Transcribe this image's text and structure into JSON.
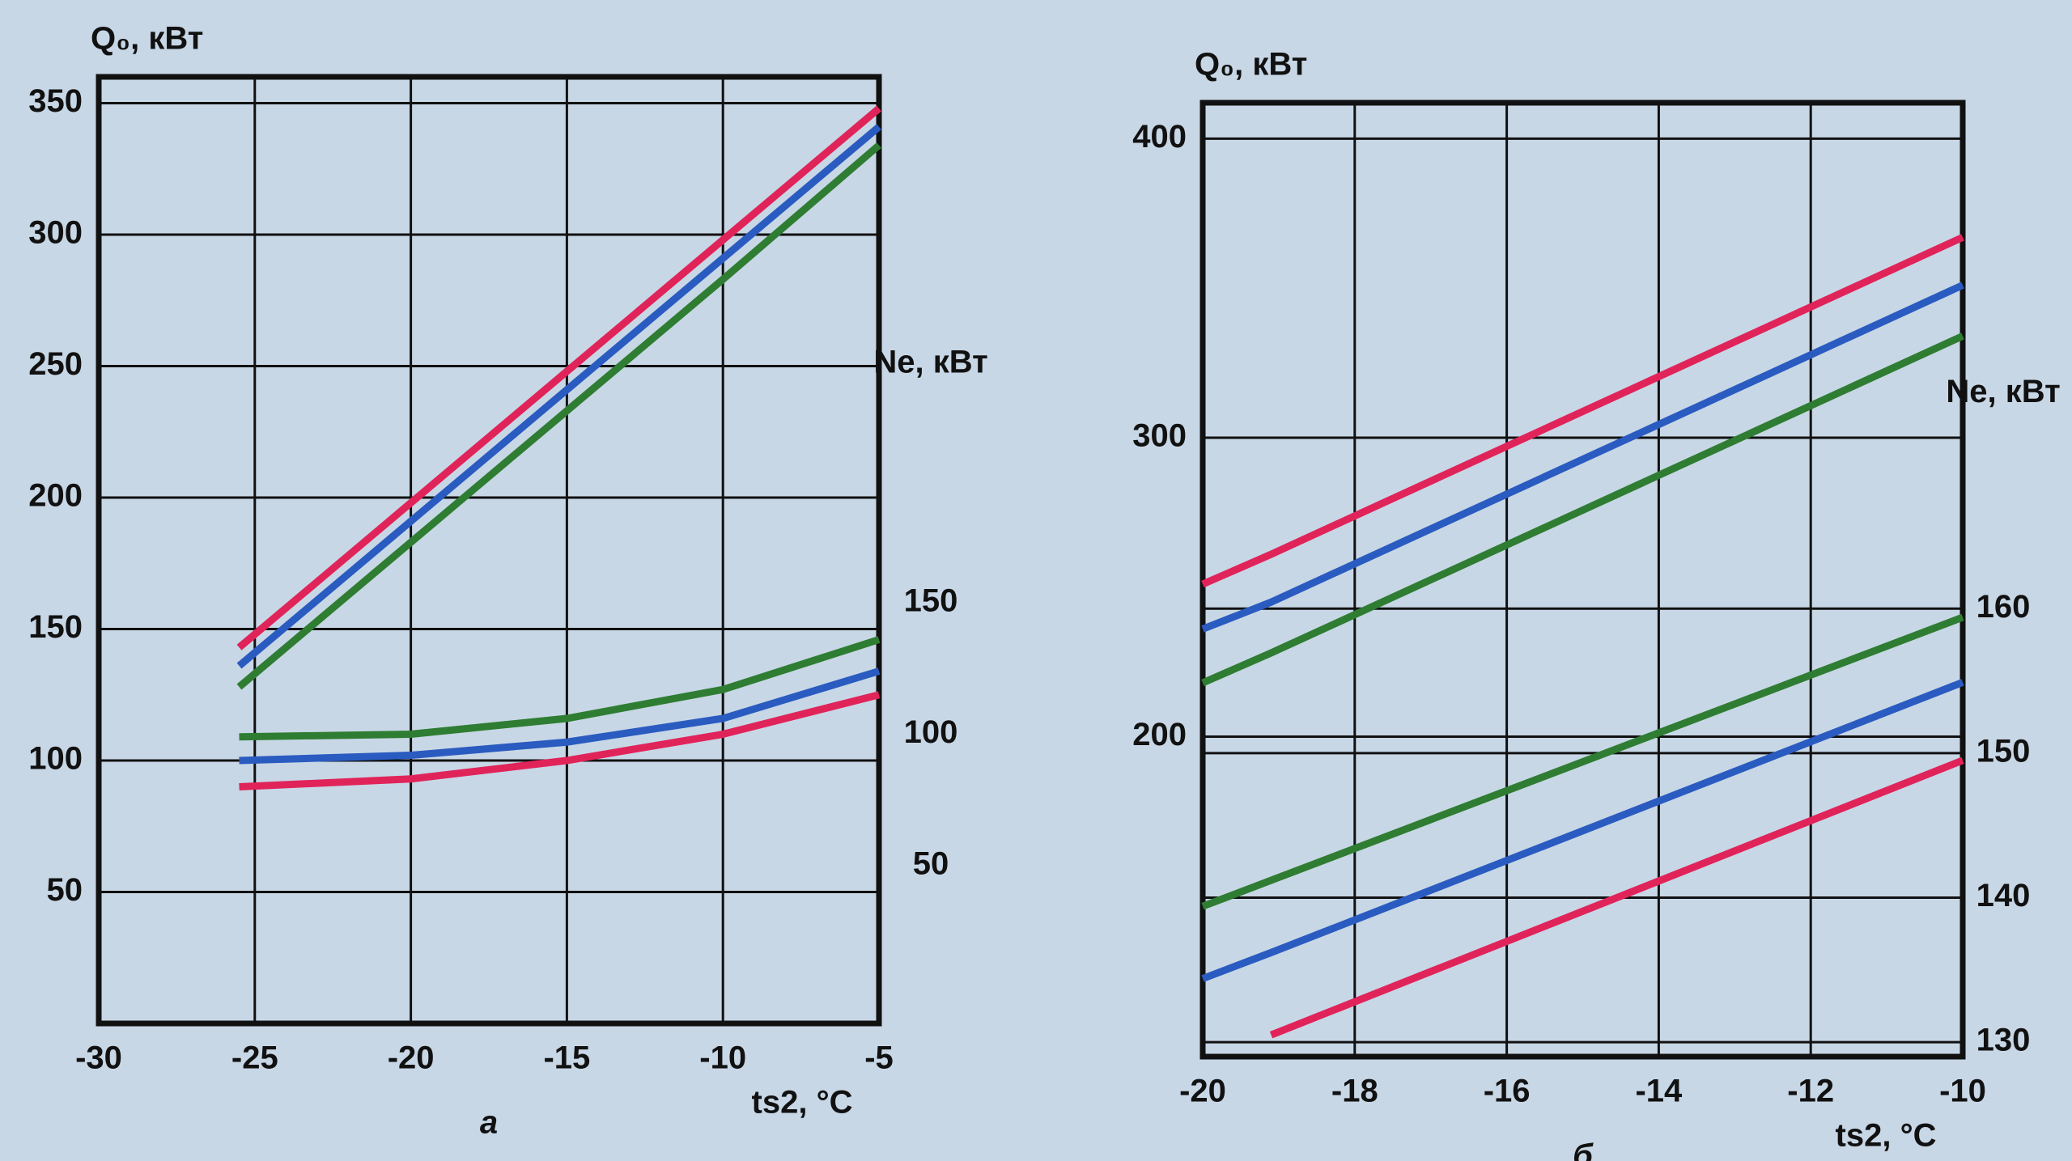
{
  "chart_data": [
    {
      "type": "line",
      "panel_label": "а",
      "ylabel": "Q₀, кВт",
      "y2label": "Ne, кВт",
      "xlabel": "ts2, °C",
      "x": [
        -25.5,
        -20,
        -15,
        -10,
        -5
      ],
      "xlim": [
        -30,
        -5
      ],
      "xticks": [
        -30,
        -25,
        -20,
        -15,
        -10,
        -5
      ],
      "ylim": [
        0,
        360
      ],
      "yticks": [
        50,
        100,
        150,
        200,
        250,
        300,
        350
      ],
      "y2lim": [
        -10,
        350
      ],
      "y2ticks": [
        50,
        100,
        150
      ],
      "grid": true,
      "y2_grid": false,
      "series": [
        {
          "name": "Q₀ red",
          "color": "#e0245a",
          "values": [
            143,
            198,
            248,
            298,
            348
          ]
        },
        {
          "name": "Q₀ blue",
          "color": "#2a5bc0",
          "values": [
            136,
            191,
            241,
            291,
            341
          ]
        },
        {
          "name": "Q₀ green",
          "color": "#2e7d32",
          "values": [
            128,
            183,
            233,
            283,
            334
          ]
        },
        {
          "name": "Ne green",
          "color": "#2e7d32",
          "axis": "y2",
          "values": [
            99,
            100,
            106,
            117,
            136
          ]
        },
        {
          "name": "Ne blue",
          "color": "#2a5bc0",
          "axis": "y2",
          "values": [
            90,
            92,
            97,
            106,
            124
          ]
        },
        {
          "name": "Ne red",
          "color": "#e0245a",
          "axis": "y2",
          "values": [
            80,
            83,
            90,
            100,
            115
          ]
        }
      ]
    },
    {
      "type": "line",
      "panel_label": "б",
      "ylabel": "Q₀, кВт",
      "y2label": "Ne, кВт",
      "xlabel": "ts2, °C",
      "x": [
        -20,
        -19.1,
        -10
      ],
      "xlim": [
        -20,
        -10
      ],
      "xticks": [
        -20,
        -18,
        -16,
        -14,
        -12,
        -10
      ],
      "ylim": [
        93,
        412
      ],
      "yticks": [
        200,
        300,
        400
      ],
      "y2lim": [
        129,
        195
      ],
      "y2ticks": [
        130,
        140,
        150,
        160
      ],
      "grid": true,
      "y2_grid": true,
      "series": [
        {
          "name": "Q₀ red",
          "color": "#e0245a",
          "values": [
            251,
            261,
            367
          ]
        },
        {
          "name": "Q₀ blue",
          "color": "#2a5bc0",
          "values": [
            236,
            245,
            351
          ]
        },
        {
          "name": "Q₀ green",
          "color": "#2e7d32",
          "values": [
            218,
            228,
            334
          ]
        },
        {
          "name": "Ne green",
          "color": "#2e7d32",
          "axis": "y2",
          "values": [
            139.4,
            141.2,
            159.4
          ]
        },
        {
          "name": "Ne blue",
          "color": "#2a5bc0",
          "axis": "y2",
          "values": [
            134.4,
            136.2,
            154.9
          ]
        },
        {
          "name": "Ne red",
          "color": "#e0245a",
          "axis": "y2",
          "values": [
            null,
            130.5,
            149.5
          ]
        }
      ]
    }
  ]
}
